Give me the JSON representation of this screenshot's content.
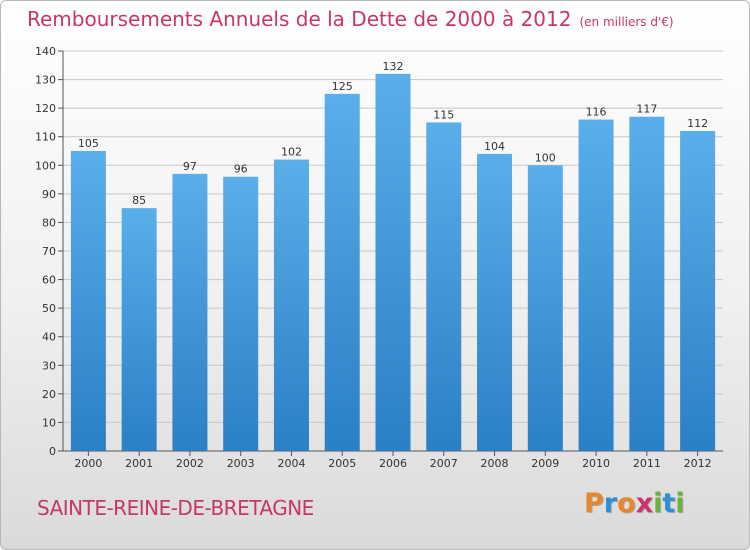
{
  "title": "Remboursements Annuels de la Dette de 2000 à 2012",
  "subtitle": "(en milliers d'€)",
  "commune": "SAINTE-REINE-DE-BRETAGNE",
  "logo_letters": [
    {
      "ch": "P",
      "color": "#e8862c"
    },
    {
      "ch": "r",
      "color": "#2f8fd6"
    },
    {
      "ch": "o",
      "color": "#e8862c"
    },
    {
      "ch": "x",
      "color": "#c8356a"
    },
    {
      "ch": "i",
      "color": "#6ab43a"
    },
    {
      "ch": "t",
      "color": "#2f8fd6"
    },
    {
      "ch": "i",
      "color": "#6ab43a"
    }
  ],
  "colors": {
    "accent": "#c8356a",
    "bar_top": "#5aaeea",
    "bar_bottom": "#2b7fc4",
    "grid": "#c8c8c8"
  },
  "chart_data": {
    "type": "bar",
    "categories": [
      "2000",
      "2001",
      "2002",
      "2003",
      "2004",
      "2005",
      "2006",
      "2007",
      "2008",
      "2009",
      "2010",
      "2011",
      "2012"
    ],
    "values": [
      105,
      85,
      97,
      96,
      102,
      125,
      132,
      115,
      104,
      100,
      116,
      117,
      112
    ],
    "ylim": [
      0,
      140
    ],
    "yticks": [
      0,
      10,
      20,
      30,
      40,
      50,
      60,
      70,
      80,
      90,
      100,
      110,
      120,
      130,
      140
    ],
    "grid": true,
    "data_labels": true
  }
}
